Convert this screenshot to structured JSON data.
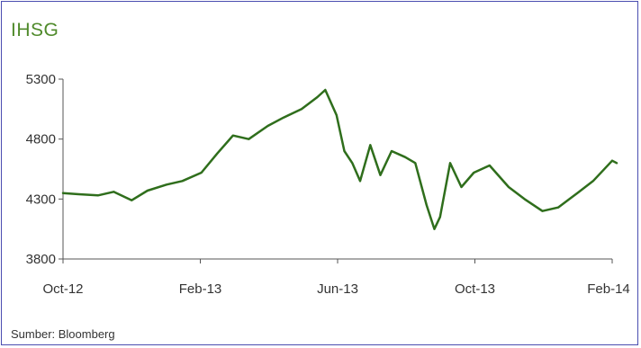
{
  "title": "IHSG",
  "source": "Sumber: Bloomberg",
  "colors": {
    "line": "#2f6e1c",
    "title": "#4f8a2b",
    "border": "#4a4db0"
  },
  "chart_data": {
    "type": "line",
    "title": "IHSG",
    "xlabel": "",
    "ylabel": "",
    "grid": false,
    "ylim": [
      3800,
      5300
    ],
    "yticks": [
      3800,
      4300,
      4800,
      5300
    ],
    "xlim": [
      "2012-10",
      "2014-02"
    ],
    "xtick_labels": [
      "Oct-12",
      "Feb-13",
      "Jun-13",
      "Oct-13",
      "Feb-14"
    ],
    "series": [
      {
        "values": [
          [
            "2012-10",
            4350
          ],
          [
            "2012-10-15",
            4340
          ],
          [
            "2012-11",
            4330
          ],
          [
            "2012-11-15",
            4360
          ],
          [
            "2012-12",
            4290
          ],
          [
            "2012-12-15",
            4370
          ],
          [
            "2013-01",
            4420
          ],
          [
            "2013-01-15",
            4450
          ],
          [
            "2013-02",
            4520
          ],
          [
            "2013-02-15",
            4680
          ],
          [
            "2013-03",
            4830
          ],
          [
            "2013-03-15",
            4800
          ],
          [
            "2013-04",
            4910
          ],
          [
            "2013-04-15",
            4980
          ],
          [
            "2013-05",
            5050
          ],
          [
            "2013-05-15",
            5150
          ],
          [
            "2013-05-22",
            5210
          ],
          [
            "2013-06",
            5000
          ],
          [
            "2013-06-08",
            4700
          ],
          [
            "2013-06-15",
            4600
          ],
          [
            "2013-06-22",
            4450
          ],
          [
            "2013-07",
            4750
          ],
          [
            "2013-07-10",
            4500
          ],
          [
            "2013-07-20",
            4700
          ],
          [
            "2013-08",
            4650
          ],
          [
            "2013-08-10",
            4600
          ],
          [
            "2013-08-20",
            4250
          ],
          [
            "2013-08-27",
            4050
          ],
          [
            "2013-09",
            4150
          ],
          [
            "2013-09-10",
            4600
          ],
          [
            "2013-09-20",
            4400
          ],
          [
            "2013-10",
            4520
          ],
          [
            "2013-10-15",
            4580
          ],
          [
            "2013-11",
            4400
          ],
          [
            "2013-11-15",
            4300
          ],
          [
            "2013-12",
            4200
          ],
          [
            "2013-12-15",
            4230
          ],
          [
            "2014-01",
            4350
          ],
          [
            "2014-01-15",
            4450
          ],
          [
            "2014-02",
            4620
          ],
          [
            "2014-02-05",
            4600
          ]
        ]
      }
    ]
  }
}
